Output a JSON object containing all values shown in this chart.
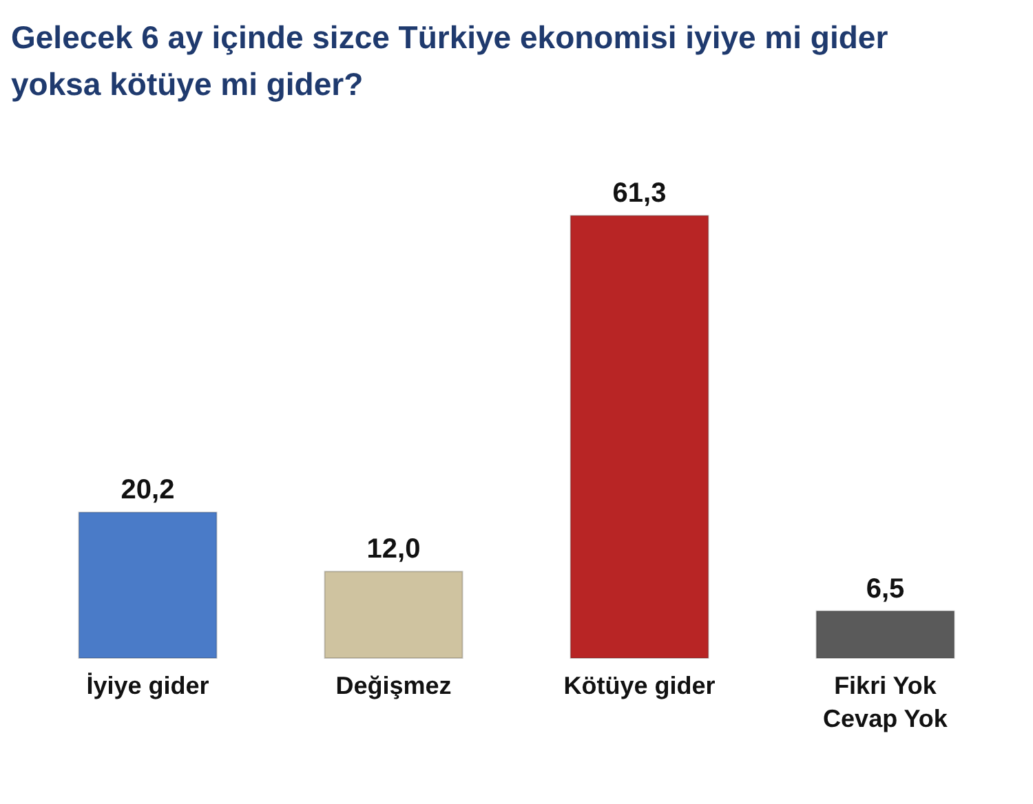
{
  "chart_data": {
    "type": "bar",
    "title": "Gelecek 6 ay içinde sizce Türkiye ekonomisi iyiye mi gider yoksa kötüye mi gider?",
    "categories": [
      "İyiye gider",
      "Değişmez",
      "Kötüye gider",
      "Fikri Yok\nCevap Yok"
    ],
    "values": [
      20.2,
      12.0,
      61.3,
      6.5
    ],
    "colors": [
      "#4a7bc8",
      "#cfc3a0",
      "#b82525",
      "#5a5a5a"
    ],
    "value_labels": [
      "20,2",
      "12,0",
      "61,3",
      "6,5"
    ],
    "grid": false,
    "legend": false
  }
}
